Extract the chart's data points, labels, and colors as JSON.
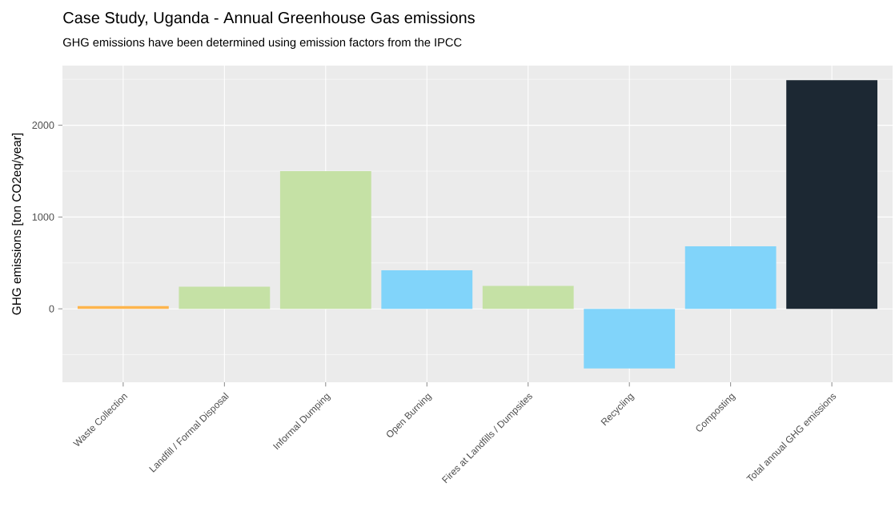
{
  "chart_data": {
    "type": "bar",
    "title": "Case Study, Uganda - Annual Greenhouse Gas emissions",
    "subtitle": "GHG emissions have been determined using emission factors from the IPCC",
    "ylabel": "GHG emissions [ton CO2eq/year]",
    "categories": [
      "Waste Collection",
      "Landfill / Formal Disposal",
      "Informal Dumping",
      "Open Burning",
      "Fires at Landfills / Dumpsites",
      "Recycling",
      "Composting",
      "Total annual GHG emissions"
    ],
    "values": [
      30,
      240,
      1500,
      420,
      250,
      -650,
      680,
      2490
    ],
    "colors": [
      "#fdb54d",
      "#c5e1a5",
      "#c5e1a5",
      "#81d4fa",
      "#c5e1a5",
      "#81d4fa",
      "#81d4fa",
      "#1c2833"
    ],
    "ylim": [
      -800,
      2650
    ],
    "yticks": [
      0,
      1000,
      2000
    ],
    "grid": true
  }
}
